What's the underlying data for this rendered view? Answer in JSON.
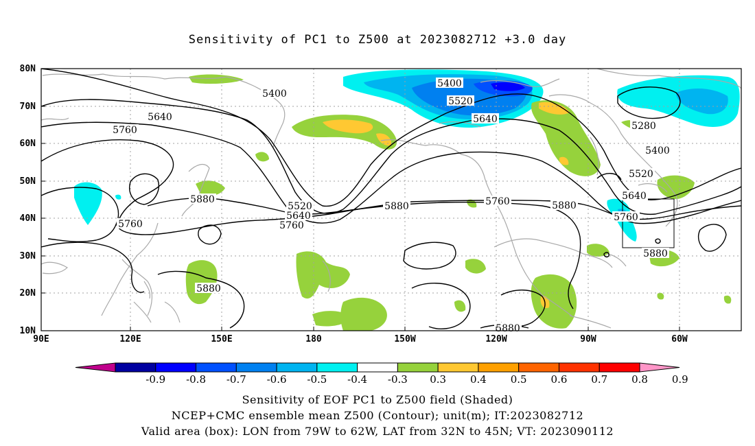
{
  "title": "Sensitivity of PC1 to Z500 at 2023082712 +3.0 day",
  "lat_labels": [
    "80N",
    "70N",
    "60N",
    "50N",
    "40N",
    "30N",
    "20N",
    "10N"
  ],
  "lon_labels": [
    "90E",
    "120E",
    "150E",
    "180",
    "150W",
    "120W",
    "90W",
    "60W"
  ],
  "contour_labels": [
    "5400",
    "5400",
    "5520",
    "5640",
    "5640",
    "5760",
    "5760",
    "5880",
    "5520",
    "5640",
    "5760",
    "5880",
    "5760",
    "5880",
    "5760",
    "5880",
    "5880",
    "5280",
    "5400",
    "5520",
    "5640",
    "5760",
    "5880",
    "5880"
  ],
  "colorbar": {
    "ticks": [
      "-0.9",
      "-0.8",
      "-0.7",
      "-0.6",
      "-0.5",
      "-0.4",
      "-0.3",
      "0.3",
      "0.4",
      "0.5",
      "0.6",
      "0.7",
      "0.8",
      "0.9"
    ],
    "colors": [
      "#c0008c",
      "#0000a0",
      "#0000ff",
      "#0050ff",
      "#0080f0",
      "#00b4f0",
      "#00f0f0",
      "#ffffff",
      "#96d23c",
      "#ffc832",
      "#ffa000",
      "#ff6400",
      "#ff3200",
      "#ff0000",
      "#ff96c8"
    ]
  },
  "valid_box": {
    "lon_west": -79,
    "lon_east": -62,
    "lat_south": 32,
    "lat_north": 45
  },
  "captions": [
    "Sensitivity of EOF PC1 to Z500 field (Shaded)",
    "NCEP+CMC ensemble mean Z500 (Contour); unit(m); IT:2023082712",
    "Valid area (box): LON from 79W to 62W, LAT from 32N to 45N; VT: 2023090112"
  ]
}
